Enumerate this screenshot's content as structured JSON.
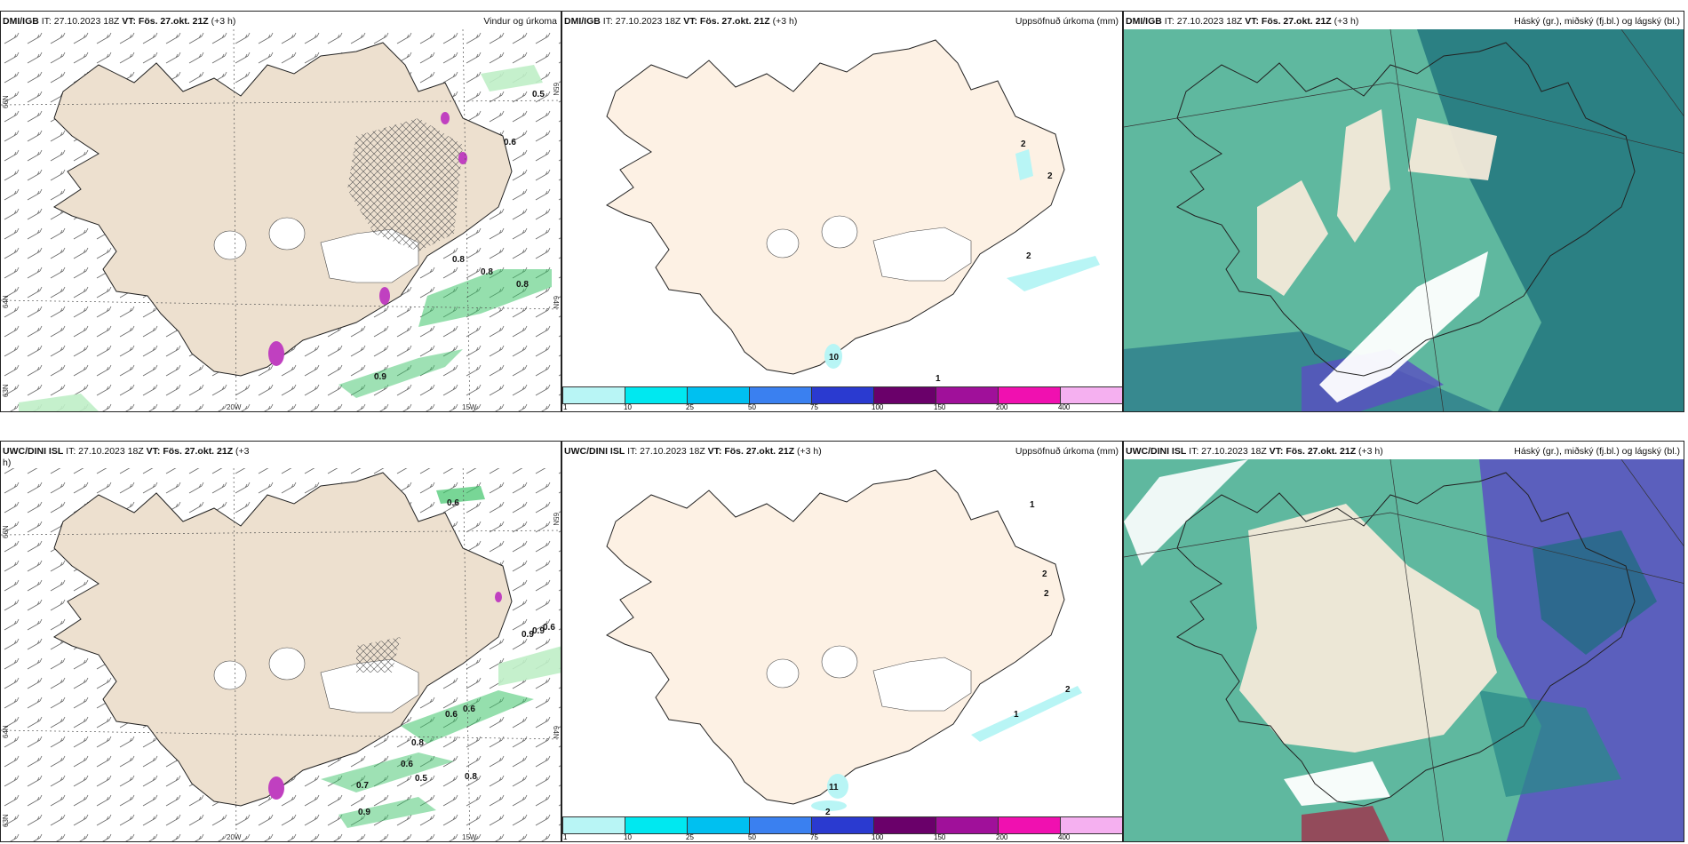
{
  "panels": [
    {
      "id": "p1",
      "source": "DMI/IGB",
      "it_label": "IT: 27.10.2023 18Z",
      "vt_label": "VT: Fös. 27.okt. 21Z",
      "lead": "(+3 h)",
      "title": "Vindur og úrkoma",
      "lat_labels": [
        "66N",
        "64N",
        "63N"
      ],
      "lon_labels": [
        "20W",
        "15W"
      ],
      "right_lat_labels": [
        "65N",
        "64N"
      ],
      "contour_labels": [
        "0.5",
        "0.6",
        "0.8",
        "0.8",
        "0.9",
        "0.8"
      ]
    },
    {
      "id": "p2",
      "source": "DMI/IGB",
      "it_label": "IT: 27.10.2023 18Z",
      "vt_label": "VT: Fös. 27.okt. 21Z",
      "lead": "(+3 h)",
      "title": "Uppsöfnuð úrkoma (mm)",
      "point_labels": [
        "2",
        "2",
        "2",
        "10",
        "1"
      ],
      "colorbar_labels": [
        "1",
        "10",
        "25",
        "50",
        "75",
        "100",
        "150",
        "200",
        "400"
      ]
    },
    {
      "id": "p3",
      "source": "DMI/IGB",
      "it_label": "IT: 27.10.2023 18Z",
      "vt_label": "VT: Fös. 27.okt. 21Z",
      "lead": "(+3 h)",
      "title": "Háský (gr.), miðský (fj.bl.) og lágský (bl.)"
    },
    {
      "id": "p4",
      "source": "UWC/DINI ISL",
      "it_label": "IT: 27.10.2023 18Z",
      "vt_label": "VT: Fös. 27.okt. 21Z",
      "lead": "(+3",
      "lead_wrap": "h)",
      "title": "",
      "lat_labels": [
        "66N",
        "64N",
        "63N"
      ],
      "lon_labels": [
        "20W",
        "15W"
      ],
      "right_lat_labels": [
        "65N",
        "64N"
      ],
      "contour_labels": [
        "0.6",
        "0.9",
        "0.9",
        "0.6",
        "0.6",
        "0.6",
        "0.8",
        "0.6",
        "0.5",
        "0.7",
        "0.8",
        "0.9"
      ]
    },
    {
      "id": "p5",
      "source": "UWC/DINI ISL",
      "it_label": "IT: 27.10.2023 18Z",
      "vt_label": "VT: Fös. 27.okt. 21Z",
      "lead": "(+3 h)",
      "title": "Uppsöfnuð úrkoma (mm)",
      "point_labels": [
        "1",
        "2",
        "2",
        "2",
        "1",
        "11",
        "2"
      ],
      "colorbar_labels": [
        "1",
        "10",
        "25",
        "50",
        "75",
        "100",
        "150",
        "200",
        "400"
      ]
    },
    {
      "id": "p6",
      "source": "UWC/DINI ISL",
      "it_label": "IT: 27.10.2023 18Z",
      "vt_label": "VT: Fös. 27.okt. 21Z",
      "lead": "(+3 h)",
      "title": "Háský (gr.), miðský (fj.bl.) og lágský (bl.)"
    }
  ],
  "colors": {
    "land": "#ede0cf",
    "land_light": "#fdf1e4",
    "ice": "#ffffff",
    "precip_green": "#3ec46a",
    "precip_light": "#bfeec6",
    "precip_purple": "#c040c0",
    "cloud_high": "#3f9a8a",
    "cloud_mid": "#5a4fc2",
    "cloud_low": "#1a6e7a",
    "colorbar": [
      "#b8f5f5",
      "#00e8f0",
      "#00c0f0",
      "#3a80f0",
      "#2a3ad0",
      "#6a006a",
      "#a0109a",
      "#f010b0",
      "#f5b0f0"
    ]
  }
}
